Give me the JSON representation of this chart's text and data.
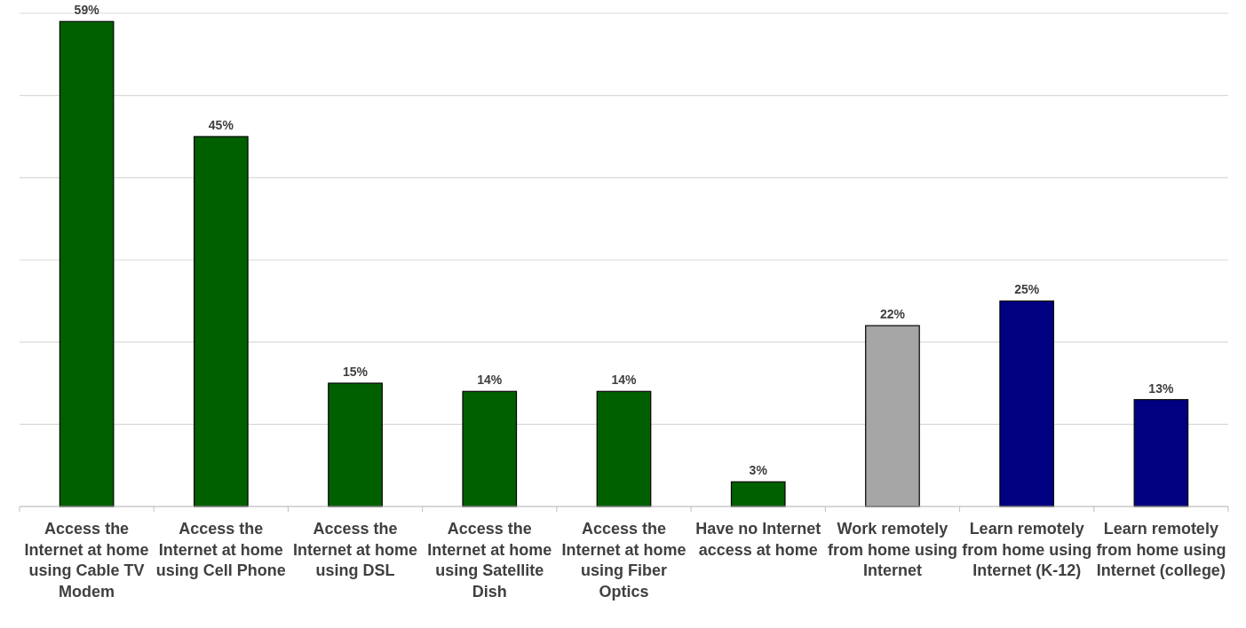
{
  "chart_data": {
    "type": "bar",
    "categories": [
      "Access the Internet at home using Cable TV Modem",
      "Access the Internet at home using Cell Phone",
      "Access the Internet at home using DSL",
      "Access the Internet at home using Satellite Dish",
      "Access the Internet at home using Fiber Optics",
      "Have no Internet access at home",
      "Work remotely from home using Internet",
      "Learn remotely from home using Internet (K-12)",
      "Learn remotely from home using Internet (college)"
    ],
    "values": [
      59,
      45,
      15,
      14,
      14,
      3,
      22,
      25,
      13
    ],
    "colors": [
      "#006000",
      "#006000",
      "#006000",
      "#006000",
      "#006000",
      "#006000",
      "#a6a6a6",
      "#000080",
      "#000080"
    ],
    "value_labels": [
      "59%",
      "45%",
      "15%",
      "14%",
      "14%",
      "3%",
      "22%",
      "25%",
      "13%"
    ],
    "ylim": [
      0,
      60
    ],
    "yticks": [
      {
        "value": 0,
        "label": null
      },
      {
        "value": 10,
        "label": null
      },
      {
        "value": 20,
        "label": null
      },
      {
        "value": 30,
        "label": null
      },
      {
        "value": 40,
        "label": null
      },
      {
        "value": 50,
        "label": null
      },
      {
        "value": 60,
        "label": null
      }
    ],
    "grid": "y",
    "tick_labels": "x"
  }
}
